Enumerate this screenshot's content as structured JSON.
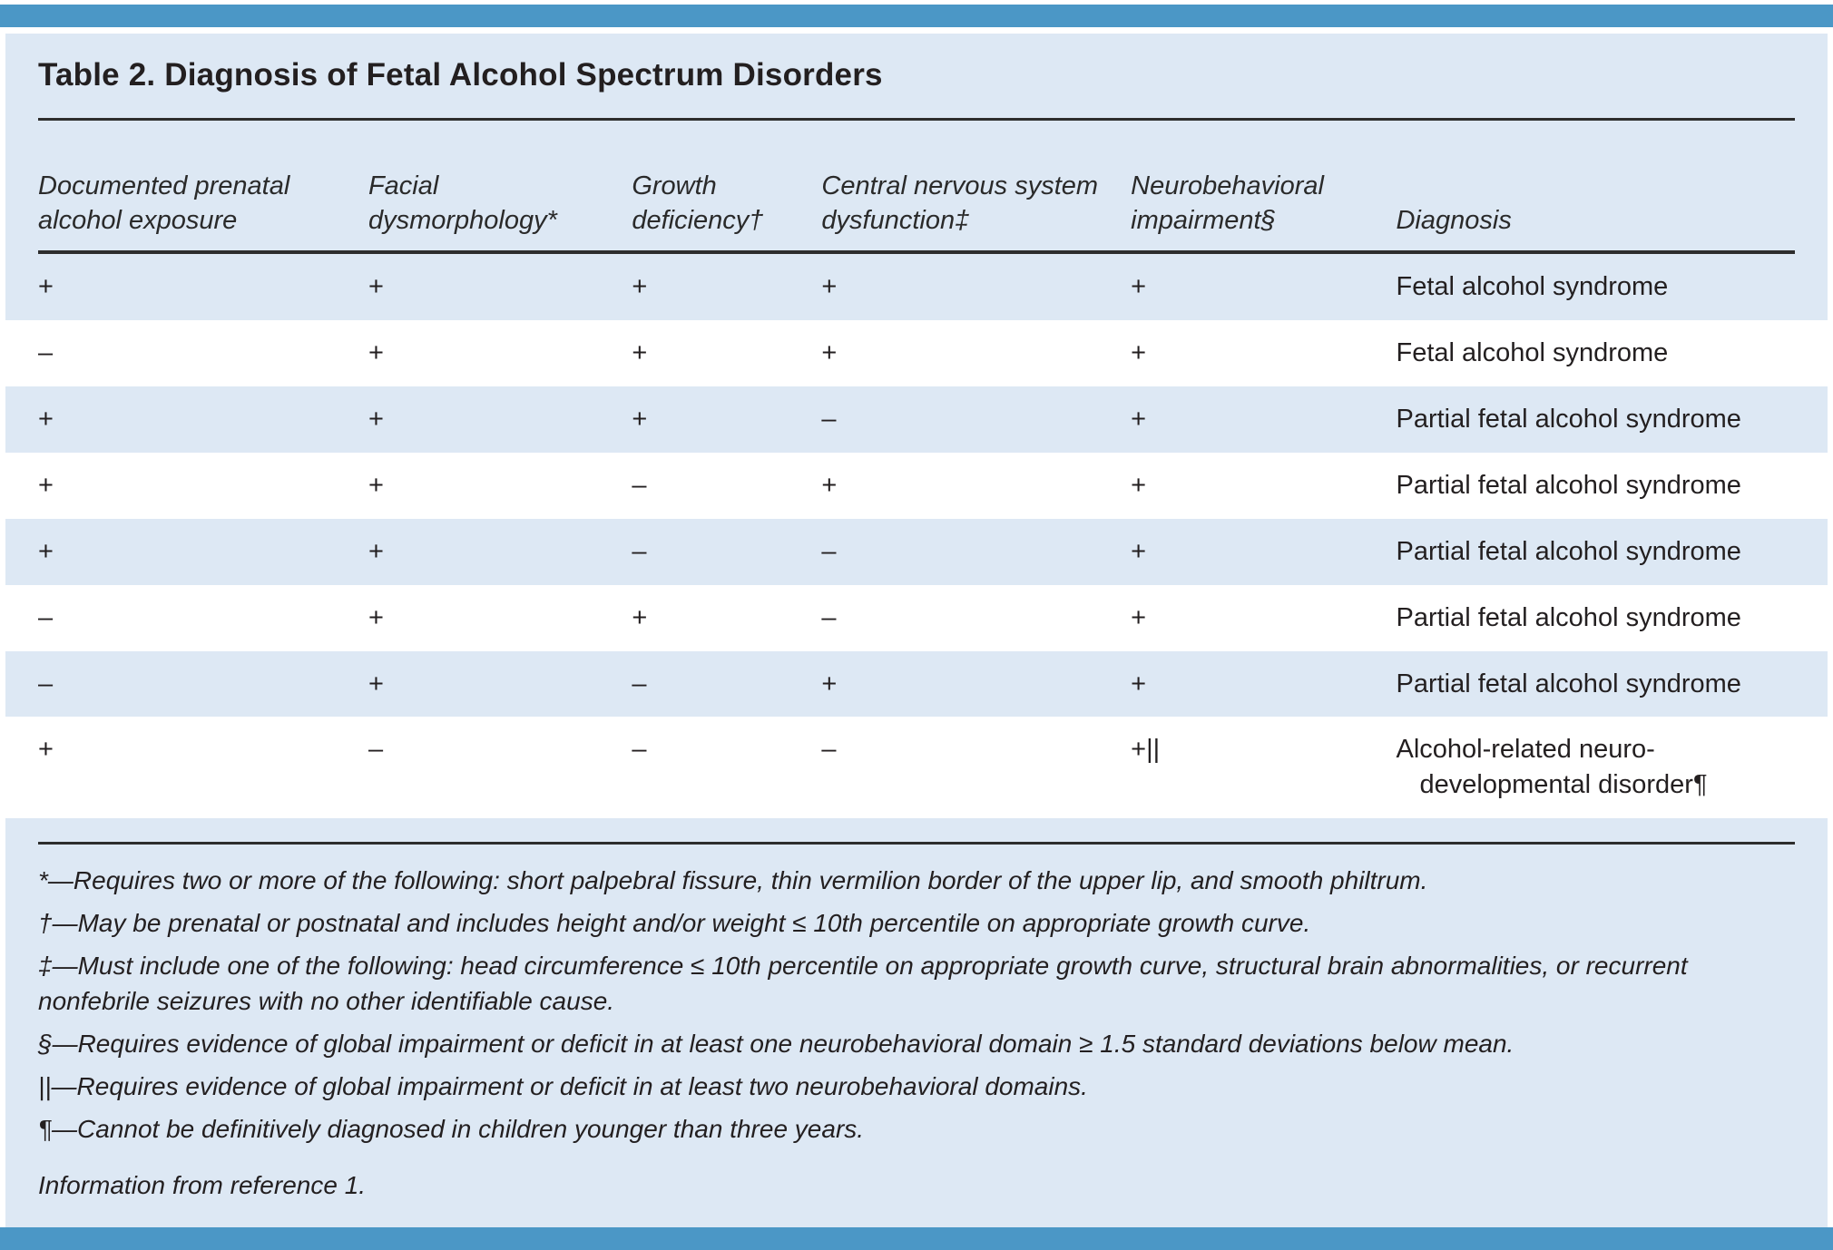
{
  "title": "Table 2. Diagnosis of Fetal Alcohol Spectrum Disorders",
  "table": {
    "columns": [
      "Documented prenatal alcohol exposure",
      "Facial dysmorphology*",
      "Growth deficiency†",
      "Central nervous system dysfunction‡",
      "Neurobehavioral impairment§",
      "Diagnosis"
    ],
    "rows": [
      {
        "exposure": "+",
        "facial": "+",
        "growth": "+",
        "cns": "+",
        "neuro": "+",
        "diagnosis": "Fetal alcohol syndrome"
      },
      {
        "exposure": "–",
        "facial": "+",
        "growth": "+",
        "cns": "+",
        "neuro": "+",
        "diagnosis": "Fetal alcohol syndrome"
      },
      {
        "exposure": "+",
        "facial": "+",
        "growth": "+",
        "cns": "–",
        "neuro": "+",
        "diagnosis": "Partial fetal alcohol syndrome"
      },
      {
        "exposure": "+",
        "facial": "+",
        "growth": "–",
        "cns": "+",
        "neuro": "+",
        "diagnosis": "Partial fetal alcohol syndrome"
      },
      {
        "exposure": "+",
        "facial": "+",
        "growth": "–",
        "cns": "–",
        "neuro": "+",
        "diagnosis": "Partial fetal alcohol syndrome"
      },
      {
        "exposure": "–",
        "facial": "+",
        "growth": "+",
        "cns": "–",
        "neuro": "+",
        "diagnosis": "Partial fetal alcohol syndrome"
      },
      {
        "exposure": "–",
        "facial": "+",
        "growth": "–",
        "cns": "+",
        "neuro": "+",
        "diagnosis": "Partial fetal alcohol syndrome"
      },
      {
        "exposure": "+",
        "facial": "–",
        "growth": "–",
        "cns": "–",
        "neuro": "+||",
        "diagnosis": "Alcohol-related neuro-\ndevelopmental disorder¶"
      }
    ]
  },
  "footnotes": [
    "*—Requires two or more of the following: short palpebral fissure, thin vermilion border of the upper lip, and smooth philtrum.",
    "†—May be prenatal or postnatal and includes height and/or weight ≤ 10th percentile on appropriate growth curve.",
    "‡—Must include one of the following: head circumference ≤ 10th percentile on appropriate growth curve, structural brain abnormalities, or recurrent nonfebrile seizures with no other identifiable cause.",
    "§—Requires evidence of global impairment or deficit in at least one neurobehavioral domain ≥ 1.5 standard deviations below mean.",
    "||—Requires evidence of global impairment or deficit in at least two neurobehavioral domains.",
    "¶—Cannot be definitively diagnosed in children younger than three years."
  ],
  "source": "Information from reference 1.",
  "colors": {
    "accent_bar": "#4b97c6",
    "card_background": "#dde8f4",
    "row_alternate": "#ffffff",
    "text": "#231f20"
  }
}
